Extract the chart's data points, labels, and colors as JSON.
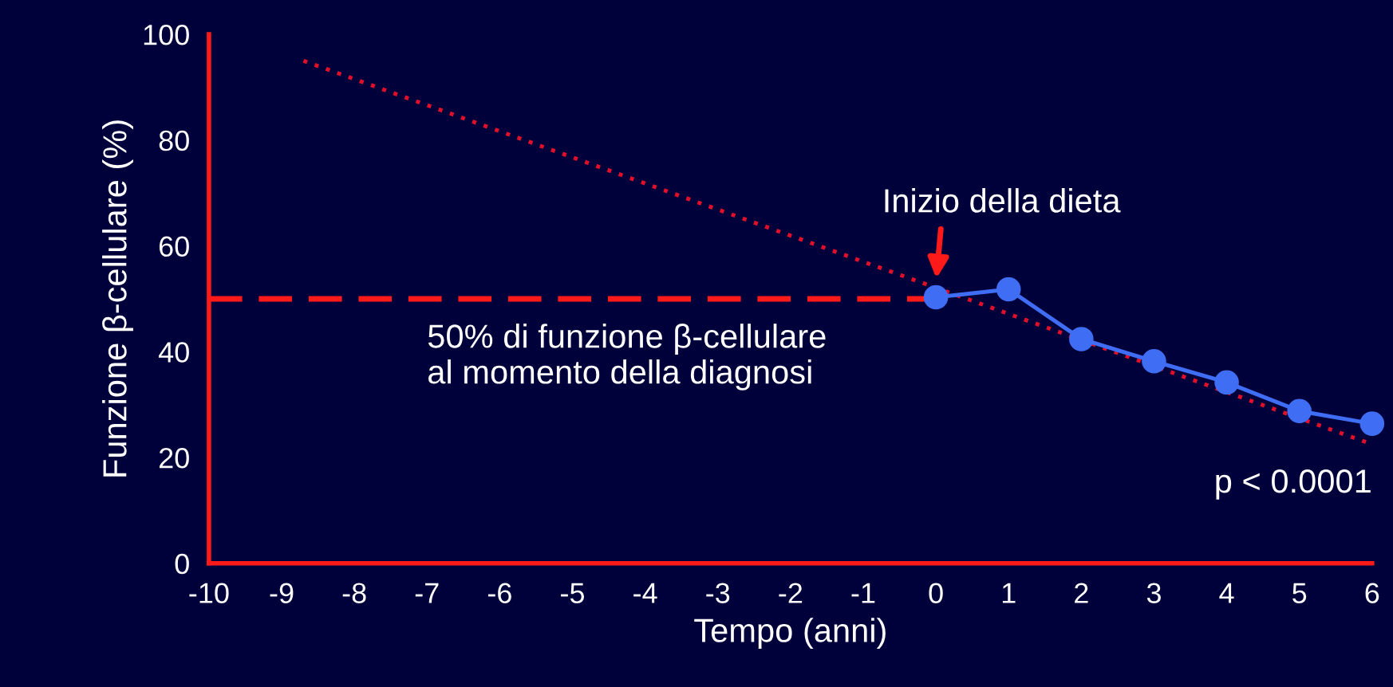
{
  "chart_data": {
    "type": "line",
    "xlabel": "Tempo (anni)",
    "ylabel": "Funzione β-cellulare (%)",
    "xlim": [
      -10,
      6
    ],
    "xticks": [
      -10,
      -9,
      -8,
      -7,
      -6,
      -5,
      -4,
      -3,
      -2,
      -1,
      0,
      1,
      2,
      3,
      4,
      5,
      6
    ],
    "ylim": [
      0,
      100
    ],
    "yticks": [
      0,
      20,
      40,
      60,
      80,
      100
    ],
    "grid": false,
    "series": [
      {
        "color": "#ff1a1a",
        "x": [
          -10,
          0
        ],
        "values": [
          50,
          50
        ],
        "line_style": "dashed",
        "marker": "none"
      },
      {
        "color": "#e0102a",
        "x": [
          -8.7,
          6
        ],
        "values": [
          95,
          22.5
        ],
        "line_style": "dotted",
        "marker": "none"
      },
      {
        "color": "#3f6ef5",
        "x": [
          0,
          1,
          2,
          3,
          4,
          5,
          6
        ],
        "values": [
          50.3,
          51.8,
          42.4,
          38.2,
          34.2,
          28.8,
          26.4
        ],
        "line_style": "solid",
        "marker": "circle"
      }
    ],
    "annotations": [
      {
        "text": "Inizio della dieta",
        "x": 0,
        "y": 50
      },
      "50% di funzione β-cellulare\nal momento della diagnosi",
      "p < 0.0001"
    ]
  }
}
